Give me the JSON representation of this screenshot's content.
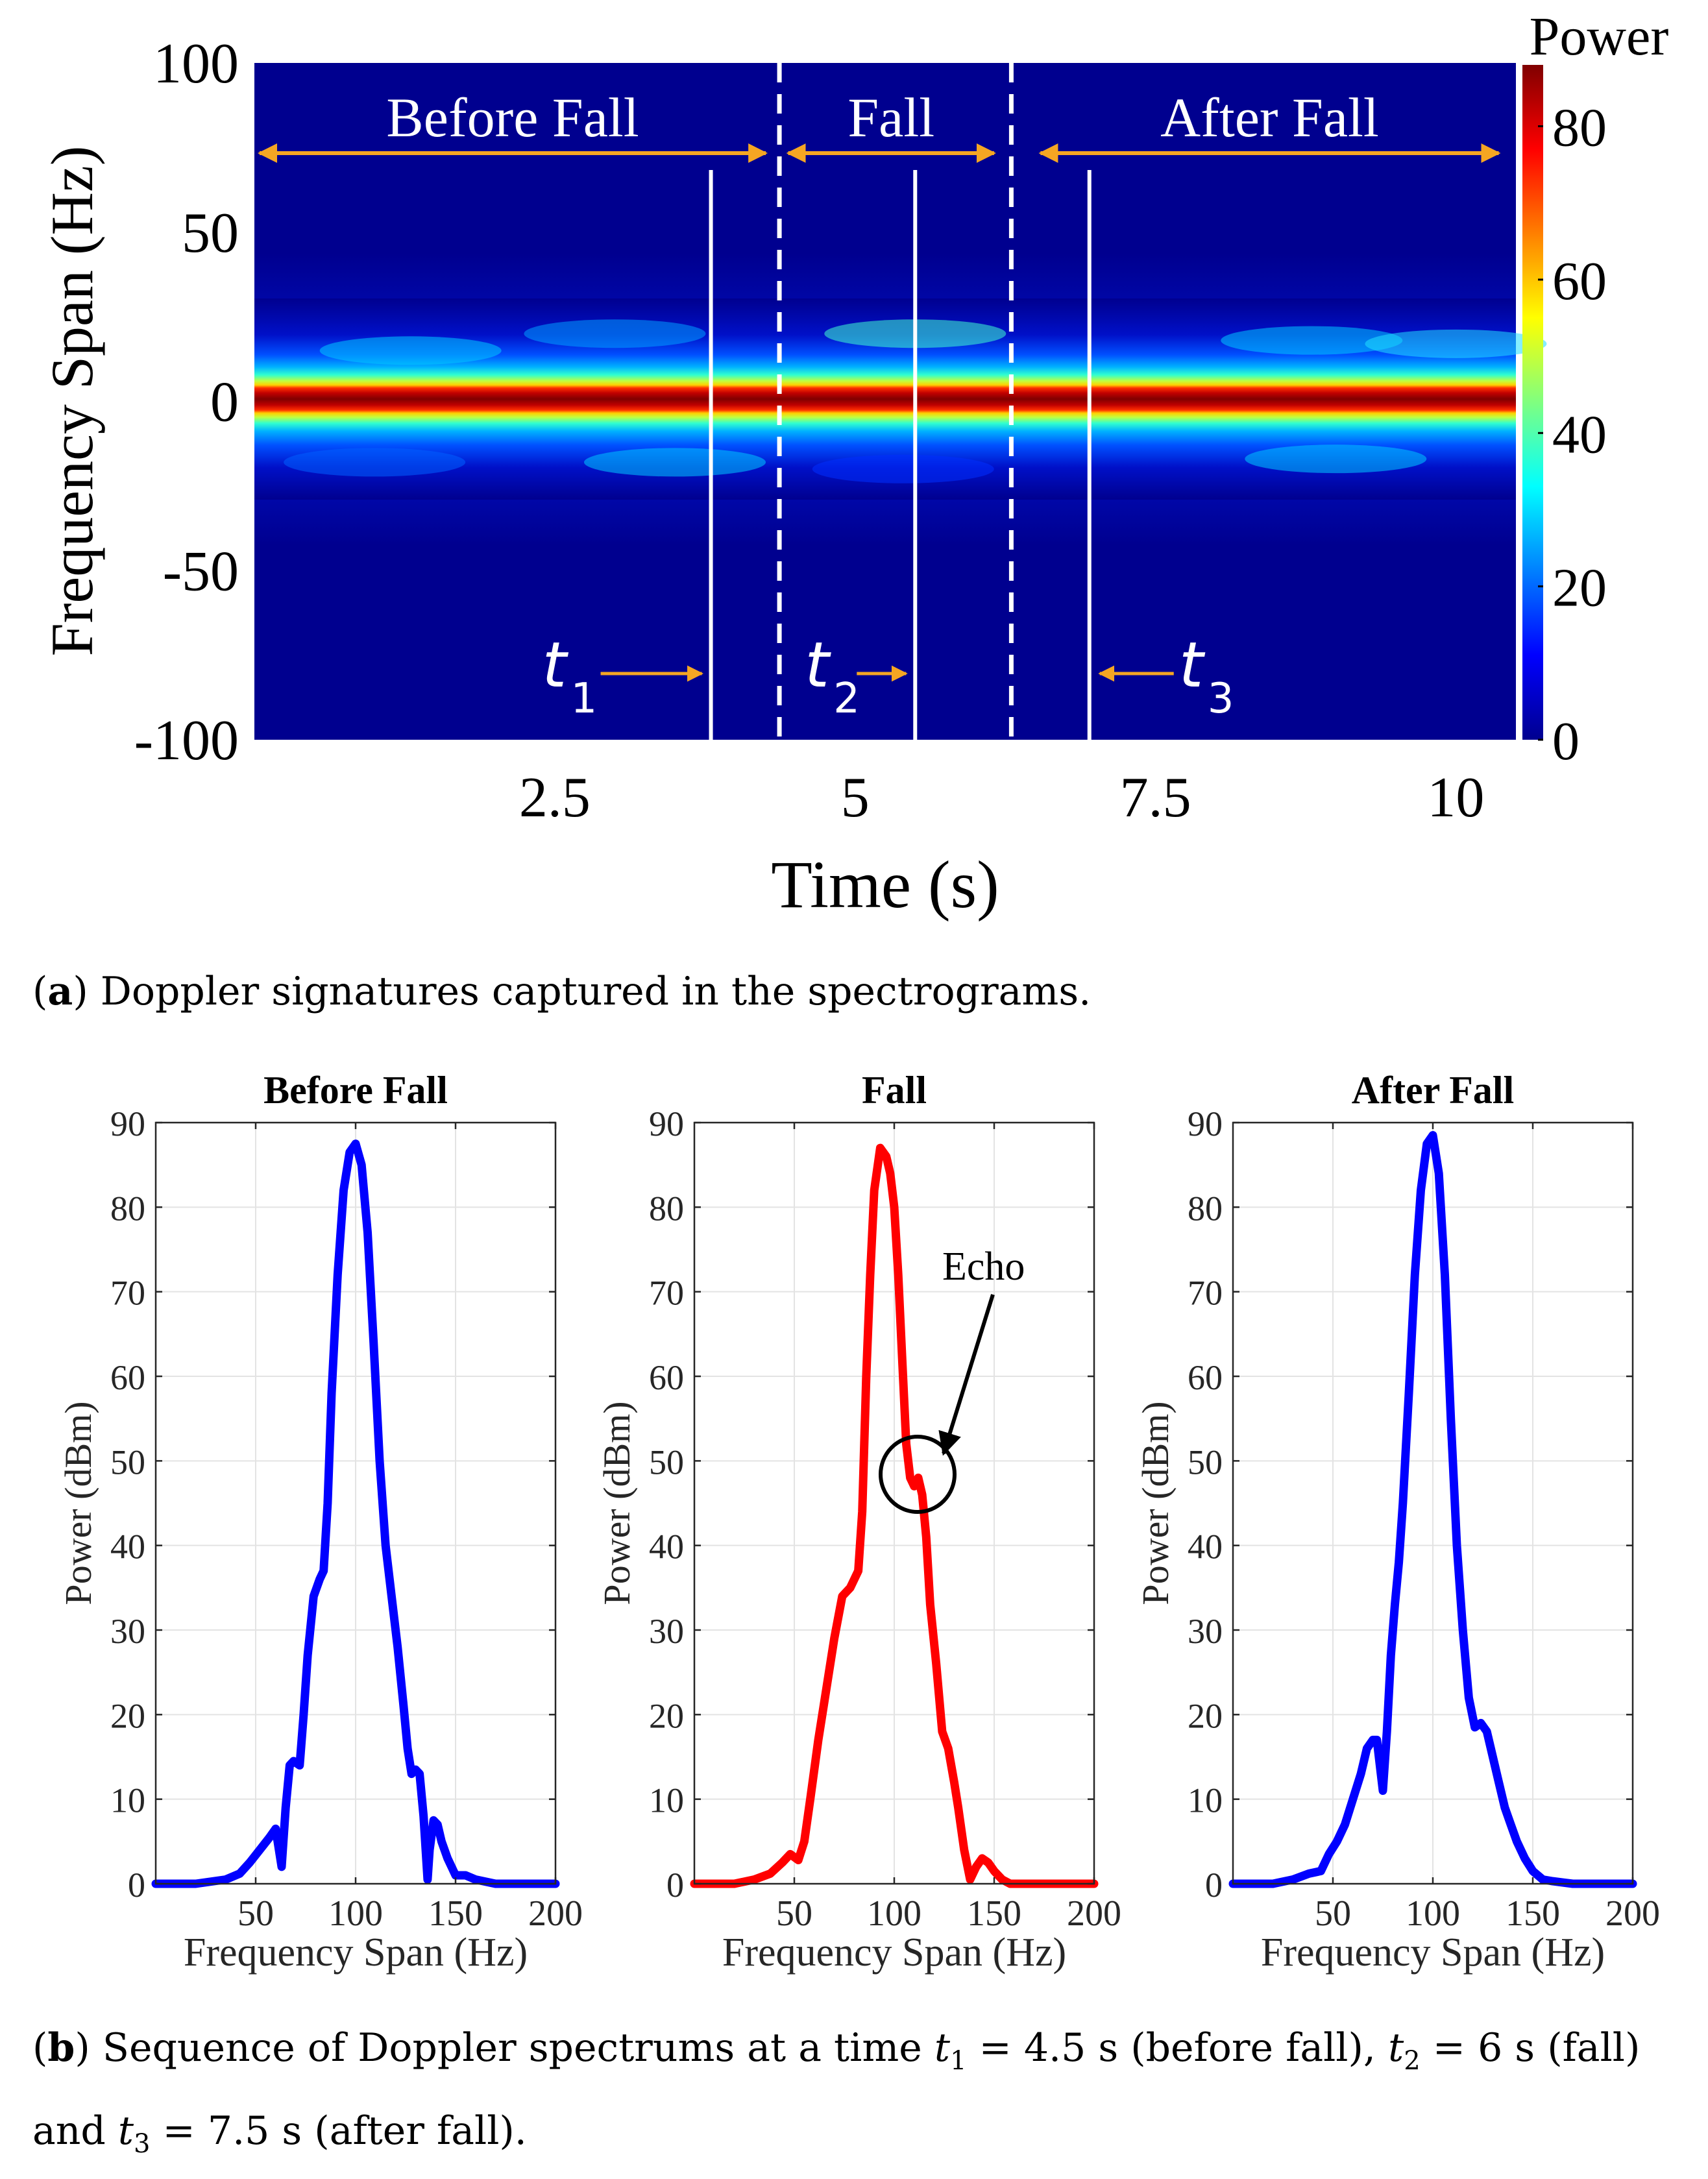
{
  "spectrogram": {
    "ylabel": "Frequency Span (Hz)",
    "xlabel": "Time (s)",
    "y_ticks": [
      "100",
      "50",
      "0",
      "-50",
      "-100"
    ],
    "x_ticks": [
      "2.5",
      "5",
      "7.5",
      "10"
    ],
    "x_tick_values": [
      2.5,
      5,
      7.5,
      10
    ],
    "xlim": [
      0.0,
      10.5
    ],
    "ylim": [
      -100,
      100
    ],
    "colorbar": {
      "label": "Power",
      "ticks": [
        "80",
        "60",
        "40",
        "20",
        "0"
      ],
      "range": [
        0,
        88
      ]
    },
    "regions": [
      {
        "label": "Before Fall",
        "from": 0.0,
        "to": 4.3
      },
      {
        "label": "Fall",
        "from": 4.4,
        "to": 6.2
      },
      {
        "label": "After Fall",
        "from": 6.5,
        "to": 10.4
      }
    ],
    "boundaries": [
      4.37,
      6.3
    ],
    "markers": [
      {
        "label": "t",
        "sub": "1",
        "time": 3.8,
        "arrow": "right"
      },
      {
        "label": "t",
        "sub": "2",
        "time": 5.5,
        "arrow": "right"
      },
      {
        "label": "t",
        "sub": "3",
        "time": 6.95,
        "arrow": "left"
      }
    ],
    "colors": {
      "background": "#00008f",
      "peak": "#800000"
    }
  },
  "caption_a": {
    "letter": "a",
    "text": "Doppler signatures captured in the spectrograms."
  },
  "chart_data": [
    {
      "type": "line",
      "title": "Before Fall",
      "xlabel": "Frequency Span (Hz)",
      "ylabel": "Power (dBm)",
      "xlim": [
        0,
        200
      ],
      "ylim": [
        0,
        90
      ],
      "x_ticks": [
        50,
        100,
        150,
        200
      ],
      "y_ticks": [
        0,
        10,
        20,
        30,
        40,
        50,
        60,
        70,
        80,
        90
      ],
      "color": "#0000ff",
      "x": [
        0,
        20,
        35,
        42,
        47,
        52,
        57,
        60,
        63,
        65,
        67,
        69,
        72,
        74,
        76,
        79,
        82,
        84,
        86,
        88,
        91,
        94,
        97,
        100,
        103,
        106,
        109,
        112,
        115,
        118,
        121,
        124,
        126,
        128,
        130,
        132,
        134,
        136,
        137,
        139,
        141,
        143,
        146,
        150,
        155,
        160,
        170,
        180,
        190,
        200
      ],
      "y": [
        0,
        0,
        0.5,
        1.2,
        2.5,
        4,
        5.5,
        6.5,
        2,
        9,
        14,
        14.5,
        14,
        20,
        27,
        34,
        36,
        37,
        45,
        58,
        72,
        82,
        86.5,
        87.5,
        85,
        77,
        64,
        50,
        40,
        34,
        28,
        21,
        16,
        13,
        13.5,
        13,
        8,
        0.5,
        4,
        7.5,
        7,
        5,
        3,
        1,
        1,
        0.5,
        0,
        0,
        0,
        0
      ]
    },
    {
      "type": "line",
      "title": "Fall",
      "xlabel": "Frequency Span (Hz)",
      "ylabel": "Power (dBm)",
      "xlim": [
        0,
        200
      ],
      "ylim": [
        0,
        90
      ],
      "x_ticks": [
        50,
        100,
        150,
        200
      ],
      "y_ticks": [
        0,
        10,
        20,
        30,
        40,
        50,
        60,
        70,
        80,
        90
      ],
      "color": "#ff0000",
      "x": [
        0,
        20,
        30,
        38,
        44,
        48,
        52,
        55,
        58,
        62,
        66,
        70,
        74,
        78,
        82,
        84,
        86,
        88,
        90,
        93,
        96,
        98,
        100,
        102,
        104,
        106,
        108,
        110,
        112,
        114,
        116,
        118,
        121,
        124,
        127,
        130,
        132,
        135,
        138,
        141,
        144,
        147,
        150,
        154,
        158,
        165,
        175,
        185,
        200
      ],
      "y": [
        0,
        0,
        0.5,
        1.2,
        2.5,
        3.5,
        2.8,
        5,
        10,
        17,
        23,
        29,
        34,
        35,
        37,
        44,
        60,
        72,
        82,
        87,
        86,
        84,
        80,
        72,
        62,
        52,
        48,
        47,
        48,
        46,
        41,
        33,
        26,
        18,
        16,
        12,
        9,
        4,
        0.5,
        2,
        3,
        2.5,
        1.5,
        0.5,
        0,
        0,
        0,
        0,
        0
      ]
    },
    {
      "type": "line",
      "title": "After Fall",
      "xlabel": "Frequency Span (Hz)",
      "ylabel": "Power (dBm)",
      "xlim": [
        0,
        200
      ],
      "ylim": [
        0,
        90
      ],
      "x_ticks": [
        50,
        100,
        150,
        200
      ],
      "y_ticks": [
        0,
        10,
        20,
        30,
        40,
        50,
        60,
        70,
        80,
        90
      ],
      "color": "#0000ff",
      "x": [
        0,
        20,
        30,
        38,
        44,
        48,
        52,
        56,
        60,
        64,
        67,
        70,
        72,
        74,
        75,
        77,
        79,
        81,
        83,
        85,
        88,
        91,
        94,
        97,
        100,
        103,
        106,
        109,
        112,
        115,
        118,
        121,
        124,
        127,
        130,
        133,
        136,
        139,
        142,
        146,
        150,
        155,
        160,
        170,
        180,
        190,
        200
      ],
      "y": [
        0,
        0,
        0.5,
        1.2,
        1.5,
        3.5,
        5,
        7,
        10,
        13,
        16,
        17,
        17,
        13,
        11,
        18,
        27,
        33,
        38,
        45,
        58,
        72,
        82,
        87.5,
        88.5,
        84,
        72,
        55,
        40,
        30,
        22,
        18.5,
        19,
        18,
        15,
        12,
        9,
        7,
        5,
        3,
        1.5,
        0.5,
        0.3,
        0,
        0,
        0,
        0
      ]
    }
  ],
  "caption_b": {
    "letter": "b",
    "prefix": "Sequence of Doppler spectrums at a time",
    "t1_value": "4.5 s",
    "t1_note": "(before fall),",
    "t2_value": "6 s",
    "t3_prefix": "(fall) and",
    "t3_value": "7.5 s",
    "t3_note": "(after fall)."
  },
  "echo_label": "Echo"
}
